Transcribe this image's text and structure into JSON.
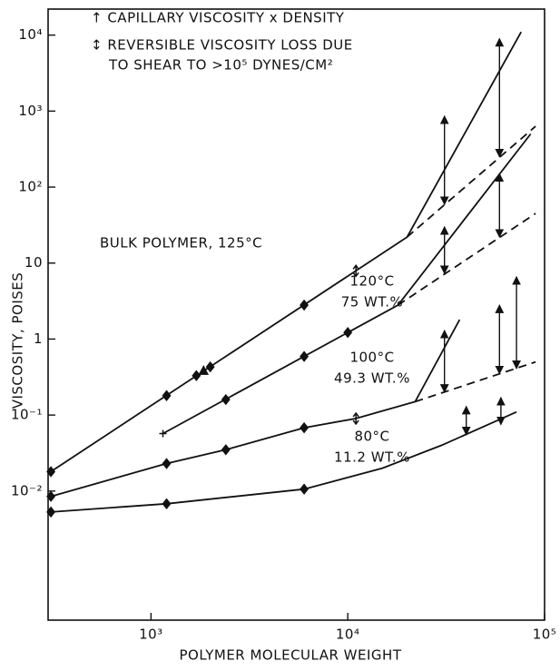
{
  "chart_data": {
    "type": "line",
    "xlabel": "POLYMER MOLECULAR WEIGHT",
    "ylabel": "VISCOSITY, POISES",
    "xscale": "log",
    "yscale": "log",
    "xlim": [
      300,
      100000
    ],
    "ylim": [
      0.0002,
      22000
    ],
    "xticks": [
      {
        "value": 1000,
        "label": "10³"
      },
      {
        "value": 10000,
        "label": "10⁴"
      },
      {
        "value": 100000,
        "label": "10⁵"
      }
    ],
    "yticks": [
      {
        "value": 0.01,
        "label": "10⁻²"
      },
      {
        "value": 0.1,
        "label": "10⁻¹"
      },
      1,
      10,
      {
        "value": 100,
        "label": "10²"
      },
      {
        "value": 1000,
        "label": "10³"
      },
      {
        "value": 10000,
        "label": "10⁴"
      }
    ],
    "legend": [
      "↑ CAPILLARY VISCOSITY x DENSITY",
      "↕ REVERSIBLE VISCOSITY LOSS DUE",
      "TO SHEAR TO >10⁵ DYNES/CM²"
    ],
    "color": "#111111",
    "series": [
      {
        "name": "BULK POLYMER, 125°C",
        "x": [
          310,
          20000,
          76000
        ],
        "values": [
          0.018,
          22,
          11000
        ],
        "dashed_x": [
          20000,
          90000
        ],
        "dashed_values": [
          22,
          630
        ],
        "markers": {
          "x": [
            310,
            1200,
            1700,
            1850,
            2000,
            6000,
            11000
          ],
          "values": [
            0.018,
            0.18,
            0.33,
            0.38,
            0.43,
            2.8,
            7.9
          ],
          "shapes": [
            "diamond",
            "diamond",
            "diamond",
            "triangle",
            "diamond",
            "diamond",
            "arrow"
          ]
        },
        "arrows": {
          "x": [
            31000,
            59000
          ],
          "high": [
            860,
            9000
          ],
          "low": [
            59,
            250
          ]
        }
      },
      {
        "name": "120°C",
        "concentration": "75 WT.%",
        "x": [
          1150,
          18000,
          85000
        ],
        "values": [
          0.057,
          2.8,
          500
        ],
        "dashed_x": [
          18000,
          90000
        ],
        "dashed_values": [
          2.8,
          45
        ],
        "markers": {
          "x": [
            1150,
            2400,
            6000,
            10000
          ],
          "values": [
            0.057,
            0.16,
            0.59,
            1.22
          ],
          "shapes": [
            "cross",
            "diamond",
            "diamond",
            "diamond"
          ]
        },
        "arrows": {
          "x": [
            31000,
            59000
          ],
          "high": [
            30,
            150
          ],
          "low": [
            7.3,
            22
          ]
        }
      },
      {
        "name": "100°C",
        "concentration": "49.3 WT.%",
        "x": [
          310,
          1200,
          2400,
          6000,
          11000,
          22000,
          37000
        ],
        "values": [
          0.0085,
          0.023,
          0.035,
          0.068,
          0.09,
          0.15,
          1.8
        ],
        "dashed_x": [
          22000,
          90000
        ],
        "dashed_values": [
          0.15,
          0.5
        ],
        "markers": {
          "x": [
            310,
            1200,
            2400,
            6000,
            11000
          ],
          "values": [
            0.0085,
            0.023,
            0.035,
            0.068,
            0.09
          ],
          "shapes": [
            "diamond",
            "diamond",
            "diamond",
            "diamond",
            "arrow"
          ]
        },
        "arrows": {
          "x": [
            31000,
            59000,
            72000
          ],
          "high": [
            1.3,
            2.8,
            6.6
          ],
          "low": [
            0.2,
            0.35,
            0.41
          ]
        }
      },
      {
        "name": "80°C",
        "concentration": "11.2 WT.%",
        "x": [
          310,
          1200,
          6000,
          15000,
          30000,
          72000
        ],
        "values": [
          0.0053,
          0.0068,
          0.0106,
          0.02,
          0.04,
          0.11
        ],
        "markers": {
          "x": [
            310,
            1200,
            6000
          ],
          "values": [
            0.0053,
            0.0068,
            0.0106
          ],
          "shapes": [
            "diamond",
            "diamond",
            "diamond"
          ]
        },
        "arrows": {
          "x": [
            40000,
            60000
          ],
          "high": [
            0.13,
            0.17
          ],
          "low": [
            0.055,
            0.075
          ]
        }
      }
    ]
  }
}
